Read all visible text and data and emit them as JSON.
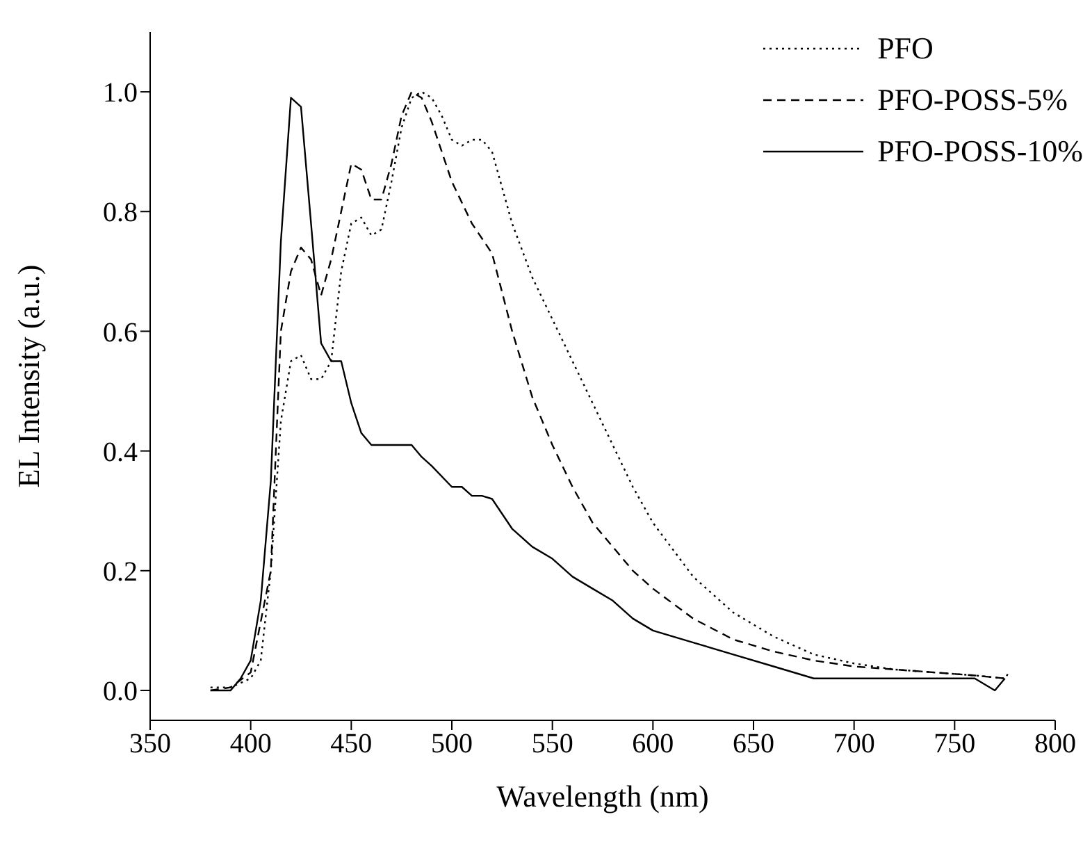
{
  "chart_data": {
    "type": "line",
    "xlabel": "Wavelength (nm)",
    "ylabel": "EL  Intensity (a.u.)",
    "xlim": [
      350,
      800
    ],
    "xticks": [
      350,
      400,
      450,
      500,
      550,
      600,
      650,
      700,
      750,
      800
    ],
    "ylim": [
      -0.05,
      1.1
    ],
    "yticks": [
      {
        "value": 0,
        "label": "0.0"
      },
      {
        "value": 0.2,
        "label": "0.2"
      },
      {
        "value": 0.4,
        "label": "0.4"
      },
      {
        "value": 0.6,
        "label": "0.6"
      },
      {
        "value": 0.8,
        "label": "0.8"
      },
      {
        "value": 1,
        "label": "1.0"
      }
    ],
    "grid": false,
    "legend": "top right",
    "marker": "none",
    "series": [
      {
        "name": "PFO",
        "color": "#000000",
        "line_style": "dotted",
        "x": [
          380,
          390,
          400,
          405,
          410,
          415,
          420,
          425,
          430,
          435,
          440,
          445,
          450,
          455,
          460,
          465,
          470,
          475,
          480,
          485,
          490,
          495,
          500,
          505,
          510,
          515,
          520,
          530,
          540,
          550,
          560,
          570,
          580,
          590,
          600,
          620,
          640,
          660,
          680,
          700,
          720,
          740,
          760,
          775,
          777
        ],
        "values": [
          0.005,
          0.005,
          0.02,
          0.05,
          0.2,
          0.45,
          0.55,
          0.56,
          0.52,
          0.52,
          0.55,
          0.7,
          0.78,
          0.79,
          0.76,
          0.77,
          0.85,
          0.94,
          0.99,
          1.0,
          0.99,
          0.96,
          0.92,
          0.91,
          0.92,
          0.92,
          0.9,
          0.78,
          0.69,
          0.62,
          0.55,
          0.48,
          0.41,
          0.34,
          0.28,
          0.19,
          0.13,
          0.09,
          0.06,
          0.045,
          0.035,
          0.03,
          0.025,
          0.02,
          0.03
        ]
      },
      {
        "name": "PFO-POSS-5%",
        "color": "#000000",
        "line_style": "dashed",
        "x": [
          380,
          390,
          400,
          410,
          415,
          420,
          425,
          430,
          435,
          440,
          445,
          450,
          455,
          460,
          465,
          470,
          475,
          480,
          485,
          490,
          500,
          510,
          520,
          530,
          540,
          550,
          560,
          570,
          580,
          590,
          600,
          620,
          640,
          660,
          680,
          700,
          720,
          740,
          760,
          775
        ],
        "values": [
          0.0,
          0.005,
          0.03,
          0.2,
          0.6,
          0.7,
          0.74,
          0.72,
          0.66,
          0.72,
          0.8,
          0.88,
          0.87,
          0.82,
          0.82,
          0.88,
          0.96,
          1.0,
          0.99,
          0.95,
          0.85,
          0.78,
          0.73,
          0.6,
          0.49,
          0.41,
          0.34,
          0.28,
          0.24,
          0.2,
          0.17,
          0.12,
          0.085,
          0.065,
          0.05,
          0.04,
          0.035,
          0.03,
          0.025,
          0.02
        ]
      },
      {
        "name": "PFO-POSS-10%",
        "color": "#000000",
        "line_style": "solid",
        "x": [
          380,
          390,
          395,
          400,
          405,
          410,
          415,
          420,
          425,
          430,
          435,
          440,
          445,
          450,
          455,
          460,
          470,
          480,
          485,
          490,
          500,
          505,
          510,
          515,
          520,
          530,
          540,
          550,
          560,
          570,
          580,
          590,
          600,
          620,
          640,
          660,
          680,
          700,
          760,
          770,
          775
        ],
        "values": [
          0.0,
          0.0,
          0.02,
          0.05,
          0.15,
          0.35,
          0.75,
          0.99,
          0.975,
          0.78,
          0.58,
          0.55,
          0.55,
          0.48,
          0.43,
          0.41,
          0.41,
          0.41,
          0.39,
          0.375,
          0.34,
          0.34,
          0.325,
          0.325,
          0.32,
          0.27,
          0.24,
          0.22,
          0.19,
          0.17,
          0.15,
          0.12,
          0.1,
          0.08,
          0.06,
          0.04,
          0.02,
          0.02,
          0.02,
          0.0,
          0.02
        ]
      }
    ]
  }
}
